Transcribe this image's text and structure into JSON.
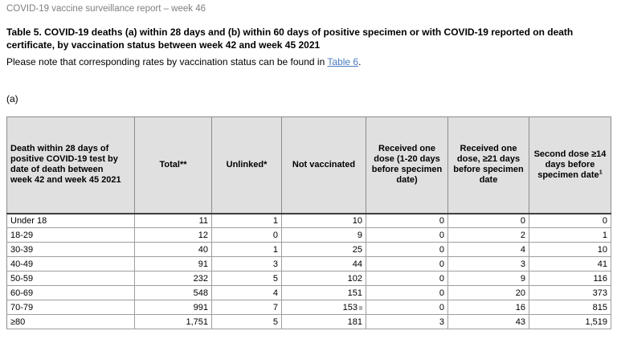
{
  "page": {
    "header": "COVID-19 vaccine surveillance report – week 46",
    "title": "Table 5. COVID-19 deaths (a) within 28 days and (b) within 60 days of positive specimen or with COVID-19 reported on death certificate, by vaccination status between week 42 and week 45 2021",
    "note_prefix": "Please note that corresponding rates by vaccination status can be found in ",
    "note_link": "Table 6",
    "note_suffix": ".",
    "section_label": "(a)"
  },
  "table": {
    "columns": [
      {
        "label": "Death within 28 days of positive COVID-19 test by date of death between week 42 and week 45 2021"
      },
      {
        "label": "Total**"
      },
      {
        "label": "Unlinked*"
      },
      {
        "label": "Not vaccinated"
      },
      {
        "label": "Received one dose (1-20 days before specimen date)"
      },
      {
        "label": "Received one dose, ≥21 days before specimen date"
      },
      {
        "label": "Second dose ≥14 days before specimen date",
        "superscript": "1"
      }
    ],
    "rows": [
      {
        "group": "Under 18",
        "values": [
          "11",
          "1",
          "10",
          "0",
          "0",
          "0"
        ]
      },
      {
        "group": "18-29",
        "values": [
          "12",
          "0",
          "9",
          "0",
          "2",
          "1"
        ]
      },
      {
        "group": "30-39",
        "values": [
          "40",
          "1",
          "25",
          "0",
          "4",
          "10"
        ]
      },
      {
        "group": "40-49",
        "values": [
          "91",
          "3",
          "44",
          "0",
          "3",
          "41"
        ]
      },
      {
        "group": "50-59",
        "values": [
          "232",
          "5",
          "102",
          "0",
          "9",
          "116"
        ]
      },
      {
        "group": "60-69",
        "values": [
          "548",
          "4",
          "151",
          "0",
          "20",
          "373"
        ]
      },
      {
        "group": "70-79",
        "values": [
          "991",
          "7",
          "153",
          "0",
          "16",
          "815"
        ],
        "marker_after_value_index": 2
      },
      {
        "group": "≥80",
        "values": [
          "1,751",
          "5",
          "181",
          "3",
          "43",
          "1,519"
        ]
      }
    ]
  },
  "colors": {
    "header_text": "#7f7f7f",
    "link": "#4a7dbe",
    "table_header_bg": "#e0e0e0",
    "border_inner": "#8c8c8c",
    "border_outer": "#595959"
  }
}
